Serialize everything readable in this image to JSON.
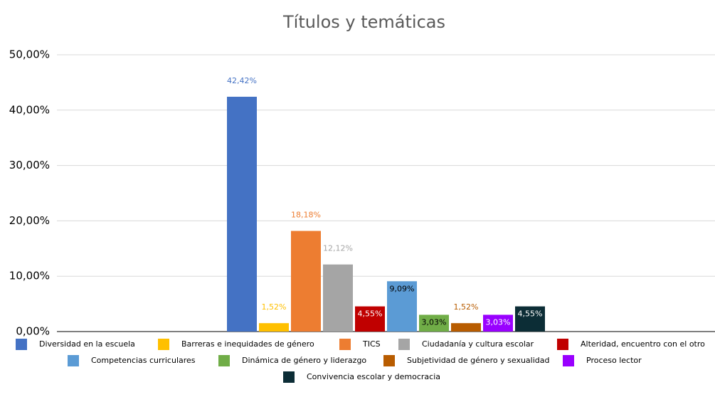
{
  "chart_data": {
    "type": "bar",
    "title": "Títulos y temáticas",
    "categories": [
      null
    ],
    "ylim": [
      0,
      50
    ],
    "yticks": [
      {
        "value": 0,
        "label": "0,00%"
      },
      {
        "value": 10,
        "label": "10,00%"
      },
      {
        "value": 20,
        "label": "20,00%"
      },
      {
        "value": 30,
        "label": "30,00%"
      },
      {
        "value": 40,
        "label": "40,00%"
      },
      {
        "value": 50,
        "label": "50,00%"
      }
    ],
    "grid": true,
    "legend": "bottom",
    "series": [
      {
        "name": "Diversidad en la escuela",
        "color": "#4472c4",
        "values": [
          42.42
        ],
        "value_labels": [
          "42,42%"
        ],
        "label_position": "above",
        "label_color": "#4472c4"
      },
      {
        "name": "Barreras e inequidades de género",
        "color": "#ffc000",
        "values": [
          1.52
        ],
        "value_labels": [
          "1,52%"
        ],
        "label_position": "above",
        "label_color": "#ffc000"
      },
      {
        "name": "TICS",
        "color": "#ed7d31",
        "values": [
          18.18
        ],
        "value_labels": [
          "18,18%"
        ],
        "label_position": "above",
        "label_color": "#ed7d31"
      },
      {
        "name": "Ciudadanía y cultura escolar",
        "color": "#a5a5a5",
        "values": [
          12.12
        ],
        "value_labels": [
          "12,12%"
        ],
        "label_position": "above",
        "label_color": "#a5a5a5"
      },
      {
        "name": "Alteridad, encuentro con el otro",
        "color": "#c00000",
        "values": [
          4.55
        ],
        "value_labels": [
          "4,55%"
        ],
        "label_position": "inside",
        "label_color": "#ffffff"
      },
      {
        "name": "Competencias curriculares",
        "color": "#5b9bd5",
        "values": [
          9.09
        ],
        "value_labels": [
          "9,09%"
        ],
        "label_position": "inside",
        "label_color": "#000000"
      },
      {
        "name": "Dinámica de género y liderazgo",
        "color": "#70ad47",
        "values": [
          3.03
        ],
        "value_labels": [
          "3,03%"
        ],
        "label_position": "inside",
        "label_color": "#000000"
      },
      {
        "name": "Subjetividad de género y sexualidad",
        "color": "#b85c00",
        "values": [
          1.52
        ],
        "value_labels": [
          "1,52%"
        ],
        "label_position": "above",
        "label_color": "#b85c00"
      },
      {
        "name": "Proceso lector",
        "color": "#9900ff",
        "values": [
          3.03
        ],
        "value_labels": [
          "3,03%"
        ],
        "label_position": "inside",
        "label_color": "#ffffff"
      },
      {
        "name": "Convivencia escolar y democracia",
        "color": "#0c2d36",
        "values": [
          4.55
        ],
        "value_labels": [
          "4,55%"
        ],
        "label_position": "inside",
        "label_color": "#ffffff"
      }
    ]
  }
}
